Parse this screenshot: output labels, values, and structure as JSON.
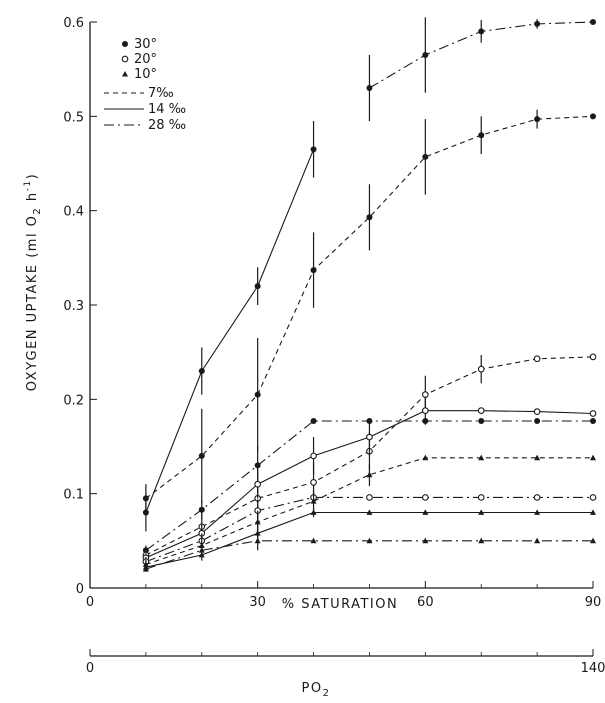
{
  "chart_data": {
    "type": "line",
    "title": "",
    "xlabel": "% SATURATION",
    "ylabel": "OXYGEN UPTAKE (ml O",
    "ylabel_sub": "2",
    "ylabel_unit": " h",
    "ylabel_sup": "-1",
    "ylabel_close": ")",
    "xlim": [
      0,
      90
    ],
    "ylim": [
      0,
      0.6
    ],
    "x_ticks": [
      0,
      30,
      60,
      90
    ],
    "x_tick_labels": [
      "0",
      "30",
      "60",
      "90"
    ],
    "y_ticks": [
      0,
      0.1,
      0.2,
      0.3,
      0.4,
      0.5,
      0.6
    ],
    "y_tick_labels": [
      "0",
      "0.1",
      "0.2",
      "0.3",
      "0.4",
      "0.5",
      "0.6"
    ],
    "secondary_axis": {
      "label": "PO",
      "label_sub": "2",
      "tick_labels": [
        "0",
        "140"
      ],
      "ticks_pct": [
        0,
        90
      ],
      "minor_ticks_pct": [
        10,
        20,
        30,
        40,
        50,
        60,
        70,
        80
      ]
    },
    "legend": {
      "placement": "top-left",
      "temperatures": [
        {
          "marker": "filled-circle-large",
          "label": "30°"
        },
        {
          "marker": "open-circle",
          "label": "20°"
        },
        {
          "marker": "filled-triangle",
          "label": "10°"
        }
      ],
      "salinities": [
        {
          "dash": "dashed",
          "label": "7‰"
        },
        {
          "dash": "solid",
          "label": "14 ‰"
        },
        {
          "dash": "dashdot",
          "label": "28 ‰"
        }
      ]
    },
    "grid": false,
    "series": [
      {
        "temperature": "30°",
        "salinity": "14 ‰",
        "dash": "solid",
        "marker": "filled-circle-large",
        "x": [
          10,
          20,
          30,
          40
        ],
        "y": [
          0.08,
          0.23,
          0.32,
          0.465
        ],
        "err": [
          0.02,
          0.025,
          0.02,
          0.03
        ]
      },
      {
        "temperature": "30°",
        "salinity": "28 ‰",
        "dash": "dashdot",
        "marker": "filled-circle-large",
        "x": [
          50,
          60,
          70,
          80,
          90
        ],
        "y": [
          0.53,
          0.565,
          0.59,
          0.598,
          0.6
        ],
        "err": [
          0.035,
          0.04,
          0.012,
          0.005,
          0
        ]
      },
      {
        "temperature": "30°",
        "salinity": "7‰",
        "dash": "dashed",
        "marker": "filled-circle-large",
        "x": [
          10,
          20,
          30,
          40,
          50,
          60,
          70,
          80,
          90
        ],
        "y": [
          0.095,
          0.14,
          0.205,
          0.337,
          0.393,
          0.457,
          0.48,
          0.497,
          0.5
        ],
        "err": [
          0.015,
          0.05,
          0.06,
          0.04,
          0.035,
          0.04,
          0.02,
          0.01,
          0
        ]
      },
      {
        "temperature": "30°",
        "salinity": "28 ‰",
        "dash": "dashdot",
        "marker": "filled-circle-large",
        "x": [
          10,
          20,
          30,
          40,
          50,
          60,
          70,
          80,
          90
        ],
        "y": [
          0.04,
          0.083,
          0.13,
          0.177,
          0.177,
          0.177,
          0.177,
          0.177,
          0.177
        ],
        "err": [
          0.005,
          0.01,
          0.02,
          0,
          0,
          0,
          0,
          0,
          0
        ]
      },
      {
        "temperature": "20°",
        "salinity": "7‰",
        "dash": "dashed",
        "marker": "open-circle",
        "x": [
          10,
          20,
          30,
          40,
          50,
          60,
          70,
          80,
          90
        ],
        "y": [
          0.035,
          0.065,
          0.095,
          0.112,
          0.145,
          0.205,
          0.232,
          0.243,
          0.245
        ],
        "err": [
          0.005,
          0.015,
          0.02,
          0.02,
          0.02,
          0.02,
          0.015,
          0,
          0
        ]
      },
      {
        "temperature": "20°",
        "salinity": "14 ‰",
        "dash": "solid",
        "marker": "open-circle",
        "x": [
          10,
          20,
          30,
          40,
          50,
          60,
          70,
          80,
          90
        ],
        "y": [
          0.032,
          0.058,
          0.11,
          0.14,
          0.16,
          0.188,
          0.188,
          0.187,
          0.185
        ],
        "err": [
          0.005,
          0.01,
          0.015,
          0.02,
          0.02,
          0.015,
          0,
          0,
          0
        ]
      },
      {
        "temperature": "20°",
        "salinity": "28 ‰",
        "dash": "dashdot",
        "marker": "open-circle",
        "x": [
          10,
          20,
          30,
          40,
          50,
          60,
          70,
          80,
          90
        ],
        "y": [
          0.028,
          0.05,
          0.082,
          0.096,
          0.096,
          0.096,
          0.096,
          0.096,
          0.096
        ],
        "err": [
          0.005,
          0.008,
          0.012,
          0.005,
          0,
          0,
          0,
          0,
          0
        ]
      },
      {
        "temperature": "10°",
        "salinity": "7‰",
        "dash": "dashed",
        "marker": "filled-triangle",
        "x": [
          10,
          20,
          30,
          40,
          50,
          60,
          70,
          80,
          90
        ],
        "y": [
          0.025,
          0.045,
          0.07,
          0.092,
          0.12,
          0.138,
          0.138,
          0.138,
          0.138
        ],
        "err": [
          0.005,
          0.008,
          0.012,
          0.012,
          0.012,
          0,
          0,
          0,
          0
        ]
      },
      {
        "temperature": "10°",
        "salinity": "14 ‰",
        "dash": "solid",
        "marker": "filled-triangle",
        "x": [
          10,
          20,
          30,
          40,
          50,
          60,
          70,
          80,
          90
        ],
        "y": [
          0.022,
          0.035,
          0.058,
          0.08,
          0.08,
          0.08,
          0.08,
          0.08,
          0.08
        ],
        "err": [
          0.004,
          0.006,
          0.01,
          0.005,
          0,
          0,
          0,
          0,
          0
        ]
      },
      {
        "temperature": "10°",
        "salinity": "28 ‰",
        "dash": "dashdot",
        "marker": "filled-triangle",
        "x": [
          10,
          20,
          30,
          40,
          50,
          60,
          70,
          80,
          90
        ],
        "y": [
          0.02,
          0.04,
          0.05,
          0.05,
          0.05,
          0.05,
          0.05,
          0.05,
          0.05
        ],
        "err": [
          0.003,
          0.005,
          0.01,
          0,
          0,
          0,
          0,
          0,
          0
        ]
      }
    ]
  }
}
